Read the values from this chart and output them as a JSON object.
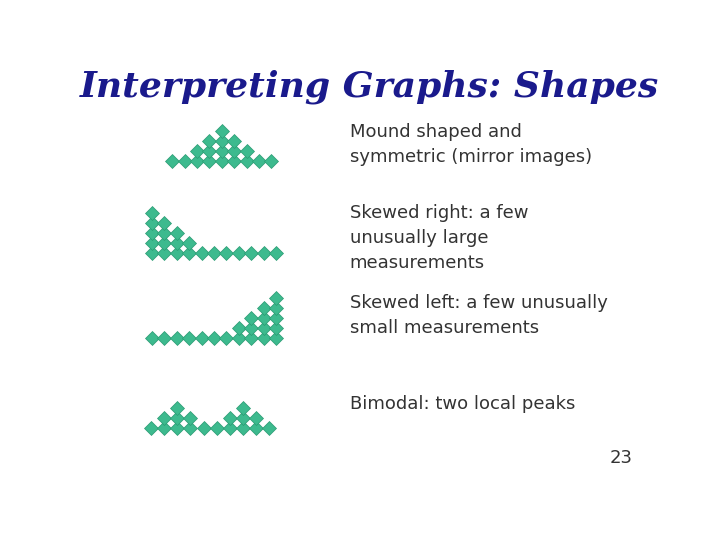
{
  "title": "Interpreting Graphs: Shapes",
  "title_color": "#1a1a8c",
  "diamond_color": "#3dba8e",
  "text_color": "#333333",
  "bg_color": "#ffffff",
  "labels": [
    "Mound shaped and\nsymmetric (mirror images)",
    "Skewed right: a few\nunusually large\nmeasurements",
    "Skewed left: a few unusually\nsmall measurements",
    "Bimodal: two local peaks"
  ],
  "page_num": "23",
  "mound_columns": [
    1,
    1,
    2,
    3,
    4,
    3,
    2,
    1,
    1
  ],
  "skew_right_columns": [
    5,
    4,
    3,
    2,
    1,
    1,
    1,
    1,
    1,
    1,
    1
  ],
  "skew_left_columns": [
    1,
    1,
    1,
    1,
    1,
    1,
    1,
    2,
    3,
    4,
    5
  ],
  "bimodal_columns": [
    1,
    2,
    3,
    2,
    1,
    1,
    2,
    3,
    2,
    1
  ]
}
